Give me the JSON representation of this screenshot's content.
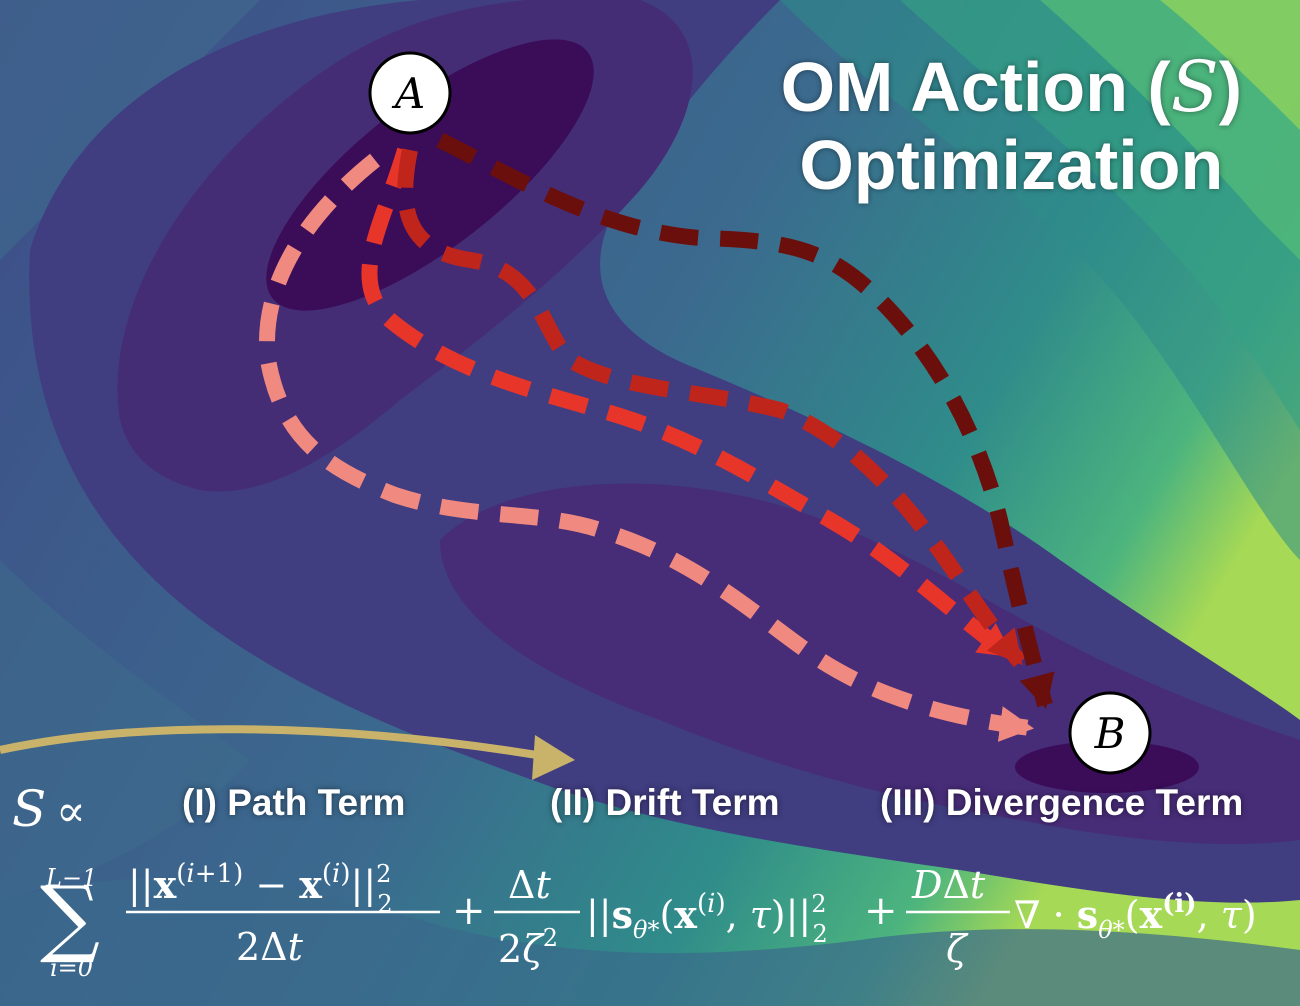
{
  "title": {
    "line1_prefix": "OM Action (",
    "symbol": "S",
    "line1_suffix": ")",
    "line2": "Optimization"
  },
  "nodes": {
    "start": "A",
    "end": "B"
  },
  "equation": {
    "lhs": "S",
    "proportional": "∝",
    "terms": [
      {
        "label": "(I) Path Term"
      },
      {
        "label": "(II) Drift Term"
      },
      {
        "label": "(III) Divergence Term"
      }
    ],
    "sum_upper": "L−1",
    "sum_lower": "i=0",
    "path_numerator": "||x(i+1) − x(i)||²₂",
    "path_denominator": "2Δt",
    "drift_numerator": "Δt",
    "drift_denominator": "2ζ²",
    "drift_norm": "||sθ*(x(i), τ)||²₂",
    "div_numerator": "DΔt",
    "div_denominator": "ζ",
    "div_expr": "∇ · sθ*(x(i), τ)"
  },
  "colors": {
    "contour_dark": "#3b0c58",
    "contour_mid": "#3f4f8a",
    "contour_green": "#5fc37a",
    "arrow_gold": "#c9b36a",
    "path_light": "#f08a80",
    "path_red": "#e8352a",
    "path_mid": "#c0251c",
    "path_dark": "#6a0f0c"
  },
  "paths": [
    {
      "name": "pink-path"
    },
    {
      "name": "red-path"
    },
    {
      "name": "crimson-path"
    },
    {
      "name": "dark-red-path"
    }
  ]
}
